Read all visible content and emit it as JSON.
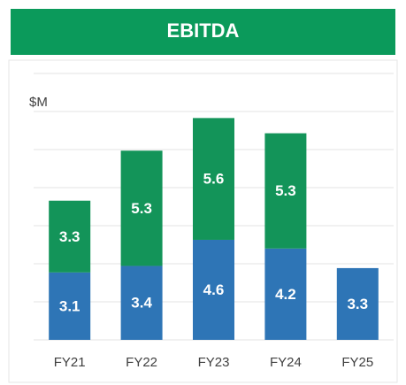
{
  "chart_data": {
    "type": "stacked_bar",
    "title": "EBITDA",
    "y_label": "$M",
    "categories": [
      "FY21",
      "FY22",
      "FY23",
      "FY24",
      "FY25"
    ],
    "series": [
      {
        "color": "#2e75b6",
        "values": [
          3.1,
          3.4,
          4.6,
          4.2,
          3.3
        ]
      },
      {
        "color": "#139459",
        "values": [
          3.3,
          5.3,
          5.6,
          5.3,
          null
        ]
      }
    ],
    "ylim": [
      0,
      12.25
    ],
    "yticks": [
      0,
      1.75,
      3.5,
      5.25,
      7,
      8.75,
      10.5,
      12.25
    ],
    "grid": true,
    "title_color": "#0b9a5b"
  }
}
